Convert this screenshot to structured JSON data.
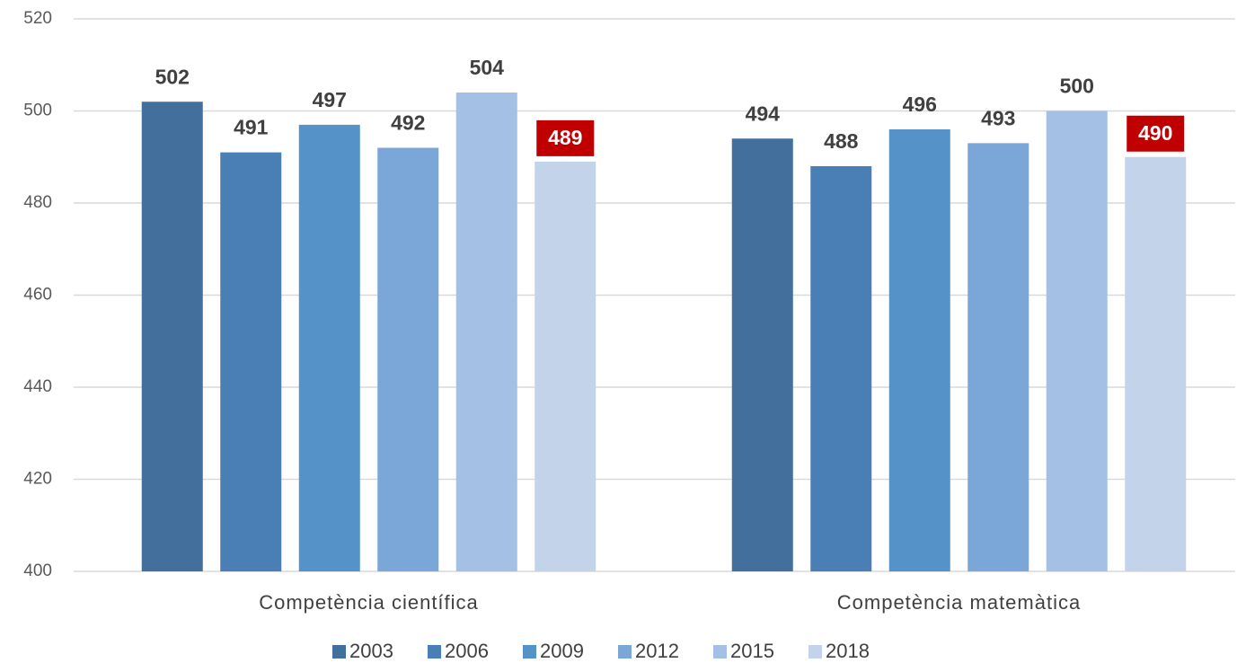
{
  "chart_data": {
    "type": "bar",
    "categories": [
      "Competència científica",
      "Competència matemàtica"
    ],
    "series": [
      {
        "name": "2003",
        "color": "#426f9b",
        "values": [
          502,
          494
        ]
      },
      {
        "name": "2006",
        "color": "#4a7fb5",
        "values": [
          491,
          488
        ]
      },
      {
        "name": "2009",
        "color": "#5592c8",
        "values": [
          497,
          496
        ]
      },
      {
        "name": "2012",
        "color": "#7aa7d8",
        "values": [
          492,
          493
        ]
      },
      {
        "name": "2015",
        "color": "#a4c0e4",
        "values": [
          504,
          500
        ]
      },
      {
        "name": "2018",
        "color": "#c3d4ea",
        "values": [
          489,
          490
        ],
        "label_background": "#c00000"
      }
    ],
    "ylim": [
      400,
      520
    ],
    "yticks": [
      400,
      420,
      440,
      460,
      480,
      500,
      520
    ],
    "grid": true,
    "legend": "bottom"
  }
}
